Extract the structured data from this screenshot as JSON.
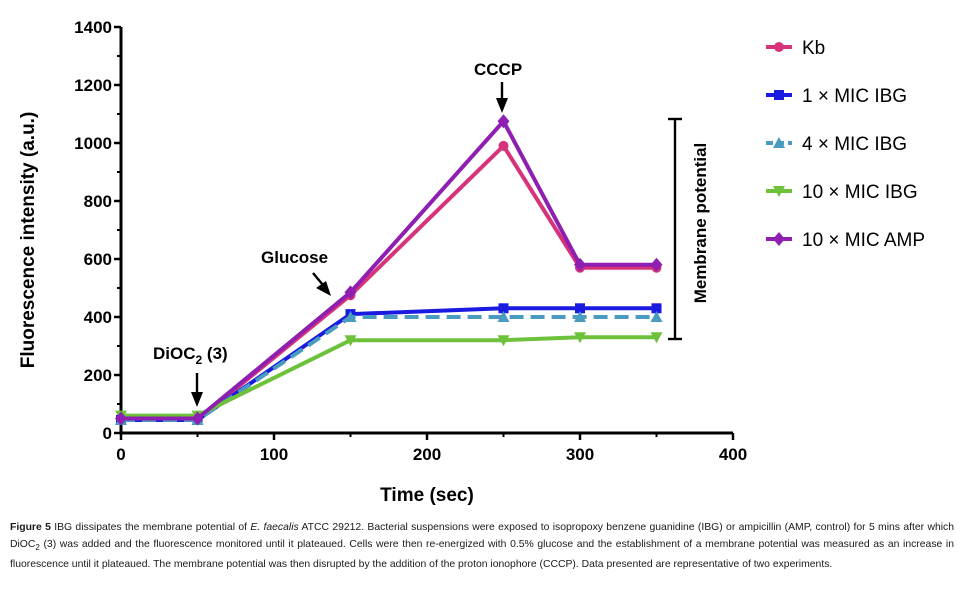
{
  "chart_data": {
    "type": "line",
    "xlabel": "Time (sec)",
    "ylabel": "Fluorescence intensity (a.u.)",
    "xlim": [
      0,
      400
    ],
    "ylim": [
      0,
      1400
    ],
    "xticks": [
      0,
      100,
      200,
      300,
      400
    ],
    "yticks": [
      0,
      200,
      400,
      600,
      800,
      1000,
      1200,
      1400
    ],
    "x": [
      0,
      50,
      150,
      250,
      300,
      350
    ],
    "series": [
      {
        "name": "Kb",
        "color": "#d6337a",
        "marker": "circle",
        "dash": "solid",
        "values": [
          45,
          45,
          475,
          990,
          570,
          570
        ]
      },
      {
        "name": "1 × MIC IBG",
        "color": "#1a1ae0",
        "marker": "square",
        "dash": "solid",
        "values": [
          45,
          45,
          410,
          430,
          430,
          430
        ]
      },
      {
        "name": "4 × MIC IBG",
        "color": "#4a9bc0",
        "marker": "triangle-up",
        "dash": "dashed",
        "values": [
          45,
          45,
          400,
          400,
          400,
          400
        ]
      },
      {
        "name": "10 × MIC IBG",
        "color": "#6ec23b",
        "marker": "triangle-down",
        "dash": "solid",
        "values": [
          60,
          60,
          320,
          320,
          330,
          330
        ]
      },
      {
        "name": "10 × MIC AMP",
        "color": "#8e1fb0",
        "marker": "diamond",
        "dash": "solid",
        "values": [
          50,
          50,
          485,
          1075,
          580,
          580
        ]
      }
    ],
    "annotations": {
      "dioc_main": "DiOC",
      "dioc_sub": "2",
      "dioc_tail": " (3)",
      "glucose": "Glucose",
      "cccp": "CCCP",
      "membrane_potential": "Membrane potential"
    }
  },
  "caption": {
    "figure_label": "Figure 5",
    "part1": " IBG dissipates the membrane potential of ",
    "species": "E. faecalis",
    "part2": " ATCC 29212. Bacterial suspensions were exposed to isopropoxy benzene guanidine (IBG) or ampicillin (AMP, control) for 5 mins after which DiOC",
    "sub1": "2",
    "part3": " (3) was added and the fluorescence monitored until it plateaued. Cells were then re-energized with 0.5% glucose and the establishment of a membrane potential was measured as an increase in fluorescence until it plateaued. The membrane potential was then disrupted by the addition of the proton ionophore (CCCP). Data presented are representative of two experiments."
  }
}
